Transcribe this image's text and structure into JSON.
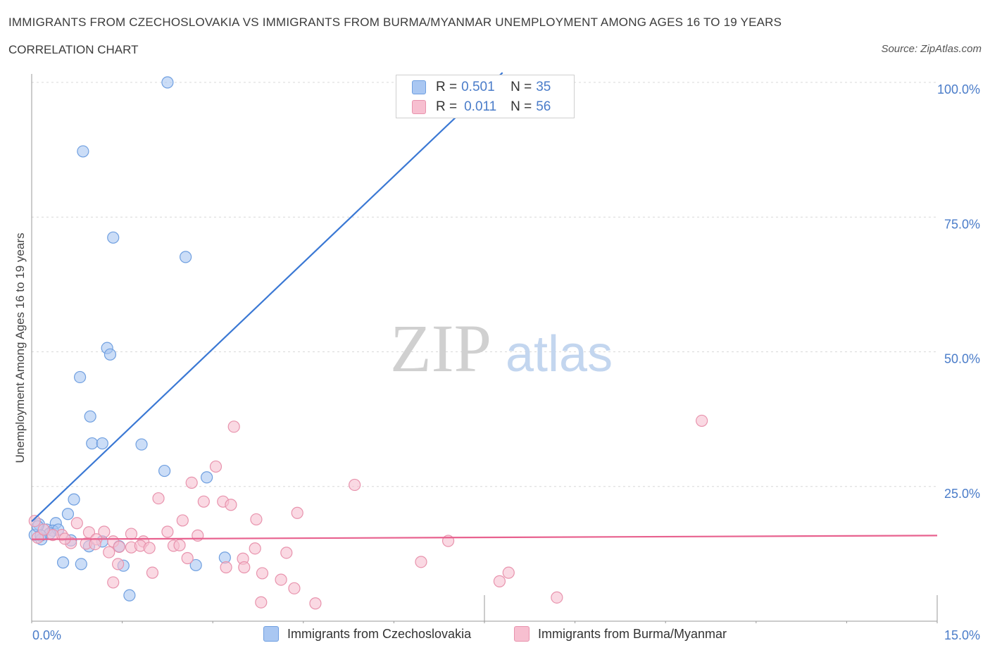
{
  "header": {
    "title": "IMMIGRANTS FROM CZECHOSLOVAKIA VS IMMIGRANTS FROM BURMA/MYANMAR UNEMPLOYMENT AMONG AGES 16 TO 19 YEARS",
    "subtitle": "CORRELATION CHART",
    "source": "Source: ZipAtlas.com"
  },
  "watermark": {
    "zip": "ZIP",
    "atlas": "atlas"
  },
  "legend": {
    "series1": {
      "r_label": "R = ",
      "r_value": "0.501",
      "n_label": "N = ",
      "n_value": "35"
    },
    "series2": {
      "r_label": "R = ",
      "r_value": "0.011",
      "n_label": "N = ",
      "n_value": "56"
    }
  },
  "colors": {
    "blue_fill": "#a9c7f2",
    "blue_stroke": "#6f9fe0",
    "blue_line": "#3a78d4",
    "pink_fill": "#f7bfd0",
    "pink_stroke": "#e893ad",
    "pink_line": "#e8628f",
    "grid": "#d8d8d8",
    "axis_text": "#4a7cc9"
  },
  "chart_data": {
    "type": "scatter",
    "title": "IMMIGRANTS FROM CZECHOSLOVAKIA VS IMMIGRANTS FROM BURMA/MYANMAR UNEMPLOYMENT AMONG AGES 16 TO 19 YEARS",
    "xlabel": "",
    "ylabel": "Unemployment Among Ages 16 to 19 years",
    "xlim": [
      0,
      15
    ],
    "ylim": [
      0,
      100
    ],
    "x_tick_labels": [
      "0.0%",
      "15.0%"
    ],
    "y_ticks": [
      25,
      50,
      75,
      100
    ],
    "y_tick_labels": [
      "25.0%",
      "50.0%",
      "75.0%",
      "100.0%"
    ],
    "grid": true,
    "series": [
      {
        "name": "Immigrants from Czechoslovakia",
        "color": "blue",
        "R": 0.501,
        "N": 35,
        "trend": {
          "x": [
            0.0,
            7.8
          ],
          "y": [
            18.5,
            101.8
          ]
        },
        "points": [
          [
            2.25,
            100.0
          ],
          [
            0.85,
            87.2
          ],
          [
            1.35,
            71.2
          ],
          [
            2.55,
            67.6
          ],
          [
            1.25,
            50.7
          ],
          [
            1.3,
            49.5
          ],
          [
            0.8,
            45.3
          ],
          [
            0.97,
            38.0
          ],
          [
            1.0,
            33.0
          ],
          [
            1.17,
            33.0
          ],
          [
            1.82,
            32.8
          ],
          [
            2.2,
            27.9
          ],
          [
            2.9,
            26.7
          ],
          [
            0.7,
            22.6
          ],
          [
            0.6,
            19.9
          ],
          [
            0.12,
            18.0
          ],
          [
            0.4,
            18.2
          ],
          [
            0.25,
            17.0
          ],
          [
            0.35,
            16.8
          ],
          [
            0.44,
            17.0
          ],
          [
            0.05,
            16.0
          ],
          [
            0.16,
            15.2
          ],
          [
            0.65,
            15.0
          ],
          [
            1.17,
            14.8
          ],
          [
            0.95,
            13.9
          ],
          [
            1.45,
            13.9
          ],
          [
            0.52,
            10.9
          ],
          [
            0.82,
            10.6
          ],
          [
            1.52,
            10.3
          ],
          [
            2.72,
            10.4
          ],
          [
            3.2,
            11.8
          ],
          [
            1.62,
            4.8
          ],
          [
            0.1,
            17.6
          ],
          [
            0.3,
            16.3
          ],
          [
            0.15,
            15.9
          ]
        ]
      },
      {
        "name": "Immigrants from Burma/Myanmar",
        "color": "pink",
        "R": 0.011,
        "N": 56,
        "trend": {
          "x": [
            0.0,
            15.0
          ],
          "y": [
            15.2,
            15.9
          ]
        },
        "points": [
          [
            11.1,
            37.2
          ],
          [
            3.35,
            36.1
          ],
          [
            3.05,
            28.7
          ],
          [
            2.65,
            25.7
          ],
          [
            5.35,
            25.3
          ],
          [
            2.1,
            22.8
          ],
          [
            2.85,
            22.2
          ],
          [
            3.17,
            22.2
          ],
          [
            3.3,
            21.6
          ],
          [
            4.4,
            20.1
          ],
          [
            0.05,
            18.6
          ],
          [
            2.5,
            18.7
          ],
          [
            3.72,
            18.9
          ],
          [
            0.75,
            18.2
          ],
          [
            0.5,
            16.0
          ],
          [
            0.95,
            16.5
          ],
          [
            1.2,
            16.6
          ],
          [
            1.65,
            16.2
          ],
          [
            2.25,
            16.6
          ],
          [
            2.75,
            15.9
          ],
          [
            1.07,
            15.2
          ],
          [
            1.35,
            14.8
          ],
          [
            1.85,
            14.8
          ],
          [
            0.9,
            14.4
          ],
          [
            0.65,
            14.5
          ],
          [
            1.05,
            14.3
          ],
          [
            1.45,
            13.8
          ],
          [
            1.65,
            13.7
          ],
          [
            1.8,
            14.0
          ],
          [
            1.95,
            13.6
          ],
          [
            2.35,
            14.0
          ],
          [
            2.45,
            14.1
          ],
          [
            3.7,
            13.5
          ],
          [
            6.9,
            14.9
          ],
          [
            1.28,
            12.8
          ],
          [
            4.22,
            12.7
          ],
          [
            2.58,
            11.7
          ],
          [
            3.5,
            11.6
          ],
          [
            6.45,
            11.0
          ],
          [
            1.43,
            10.6
          ],
          [
            3.22,
            10.0
          ],
          [
            3.52,
            10.0
          ],
          [
            2.0,
            9.0
          ],
          [
            3.82,
            8.9
          ],
          [
            7.9,
            9.0
          ],
          [
            4.13,
            7.7
          ],
          [
            7.75,
            7.4
          ],
          [
            1.35,
            7.2
          ],
          [
            4.35,
            6.1
          ],
          [
            8.7,
            4.4
          ],
          [
            3.8,
            3.5
          ],
          [
            4.7,
            3.3
          ],
          [
            0.1,
            15.5
          ],
          [
            0.35,
            16.0
          ],
          [
            0.2,
            17.0
          ],
          [
            0.55,
            15.3
          ]
        ]
      }
    ]
  },
  "bottom_legend": {
    "series1_label": "Immigrants from Czechoslovakia",
    "series2_label": "Immigrants from Burma/Myanmar"
  }
}
